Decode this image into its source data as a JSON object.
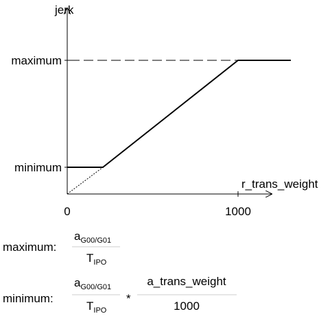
{
  "axes": {
    "y_label": "jerk",
    "x_label": "r_trans_weight",
    "y_levels": [
      "maximum",
      "minimum"
    ],
    "x_ticks": [
      "0",
      "1000"
    ]
  },
  "formulas": [
    {
      "label": "maximum:",
      "numerator": {
        "base": "a",
        "subscript": "G00/G01"
      },
      "denominator": {
        "base": "T",
        "subscript": "IPO"
      }
    },
    {
      "label": "minimum:",
      "numerator": {
        "base": "a",
        "subscript": "G00/G01"
      },
      "denominator": {
        "base": "T",
        "subscript": "IPO"
      },
      "operator": "*",
      "numerator2": "a_trans_weight",
      "denominator2": "1000"
    }
  ]
}
